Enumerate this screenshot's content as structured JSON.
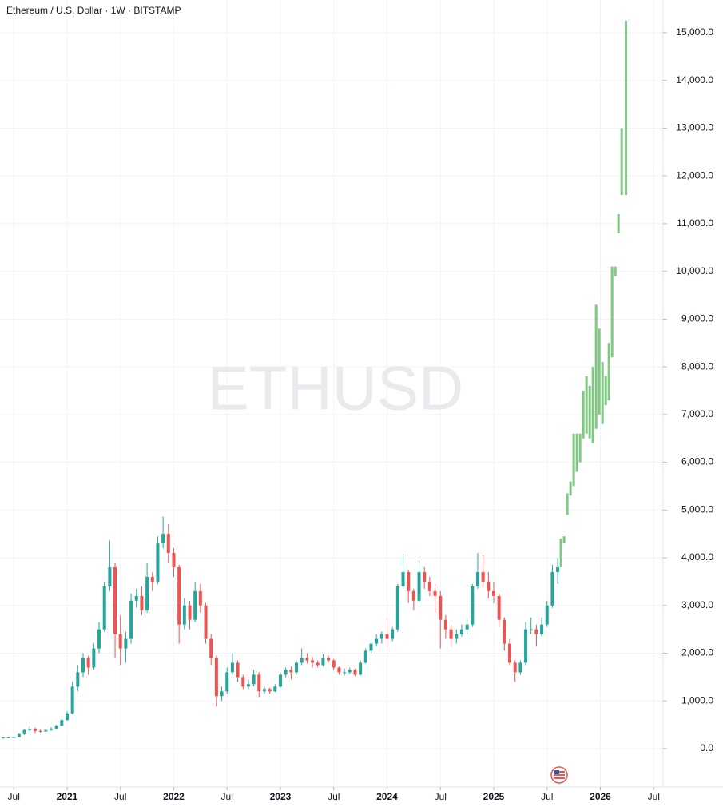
{
  "chart_data": {
    "type": "candlestick",
    "title": "Ethereum / U.S. Dollar · 1W · BITSTAMP",
    "watermark": "ETHUSD",
    "up_color": "#26a69a",
    "down_color": "#ef5350",
    "x": [
      2020.4,
      2020.45,
      2020.5,
      2020.55,
      2020.6,
      2020.65,
      2020.7,
      2020.75,
      2020.8,
      2020.85,
      2020.9,
      2020.95,
      2021.0,
      2021.05,
      2021.1,
      2021.15,
      2021.2,
      2021.25,
      2021.3,
      2021.35,
      2021.4,
      2021.45,
      2021.5,
      2021.55,
      2021.6,
      2021.65,
      2021.7,
      2021.75,
      2021.8,
      2021.85,
      2021.9,
      2021.95,
      2022.0,
      2022.05,
      2022.1,
      2022.15,
      2022.2,
      2022.25,
      2022.3,
      2022.35,
      2022.4,
      2022.45,
      2022.5,
      2022.55,
      2022.6,
      2022.65,
      2022.7,
      2022.75,
      2022.8,
      2022.85,
      2022.9,
      2022.95,
      2023.0,
      2023.05,
      2023.1,
      2023.15,
      2023.2,
      2023.25,
      2023.3,
      2023.35,
      2023.4,
      2023.45,
      2023.5,
      2023.55,
      2023.6,
      2023.65,
      2023.7,
      2023.75,
      2023.8,
      2023.85,
      2023.9,
      2023.95,
      2024.0,
      2024.05,
      2024.1,
      2024.15,
      2024.2,
      2024.25,
      2024.3,
      2024.35,
      2024.4,
      2024.45,
      2024.5,
      2024.55,
      2024.6,
      2024.65,
      2024.7,
      2024.75,
      2024.8,
      2024.85,
      2024.9,
      2024.95,
      2025.0,
      2025.05,
      2025.1,
      2025.15,
      2025.2,
      2025.25,
      2025.3,
      2025.35,
      2025.4,
      2025.45,
      2025.5,
      2025.55,
      2025.6
    ],
    "ohlc": [
      [
        225,
        245,
        215,
        230
      ],
      [
        230,
        250,
        220,
        235
      ],
      [
        235,
        255,
        225,
        240
      ],
      [
        240,
        320,
        235,
        300
      ],
      [
        300,
        410,
        290,
        390
      ],
      [
        390,
        480,
        370,
        420
      ],
      [
        420,
        440,
        310,
        370
      ],
      [
        370,
        400,
        330,
        360
      ],
      [
        360,
        410,
        350,
        390
      ],
      [
        390,
        450,
        370,
        420
      ],
      [
        420,
        500,
        410,
        480
      ],
      [
        480,
        640,
        470,
        600
      ],
      [
        600,
        780,
        580,
        740
      ],
      [
        740,
        1400,
        720,
        1300
      ],
      [
        1300,
        1750,
        1200,
        1600
      ],
      [
        1600,
        2000,
        1500,
        1900
      ],
      [
        1900,
        1950,
        1550,
        1700
      ],
      [
        1700,
        2200,
        1650,
        2100
      ],
      [
        2100,
        2650,
        2000,
        2500
      ],
      [
        2500,
        3500,
        2450,
        3400
      ],
      [
        3400,
        4360,
        3300,
        3800
      ],
      [
        3800,
        3900,
        1900,
        2400
      ],
      [
        2400,
        2800,
        1750,
        2100
      ],
      [
        2100,
        2450,
        1800,
        2300
      ],
      [
        2300,
        3250,
        2200,
        3100
      ],
      [
        3100,
        3350,
        2950,
        3200
      ],
      [
        3200,
        3400,
        2800,
        2900
      ],
      [
        2900,
        3900,
        2850,
        3600
      ],
      [
        3600,
        3700,
        3300,
        3500
      ],
      [
        3500,
        4450,
        3450,
        4300
      ],
      [
        4300,
        4860,
        4200,
        4500
      ],
      [
        4500,
        4700,
        3900,
        4100
      ],
      [
        4100,
        4200,
        3600,
        3800
      ],
      [
        3800,
        3850,
        2200,
        2600
      ],
      [
        2600,
        3150,
        2500,
        3000
      ],
      [
        3000,
        3100,
        2500,
        2700
      ],
      [
        2700,
        3500,
        2650,
        3300
      ],
      [
        3300,
        3450,
        2850,
        3000
      ],
      [
        3000,
        3050,
        2200,
        2300
      ],
      [
        2300,
        2400,
        1750,
        1900
      ],
      [
        1900,
        1950,
        880,
        1100
      ],
      [
        1100,
        1300,
        1000,
        1200
      ],
      [
        1200,
        1700,
        1150,
        1600
      ],
      [
        1600,
        2000,
        1550,
        1800
      ],
      [
        1800,
        1850,
        1400,
        1500
      ],
      [
        1500,
        1550,
        1250,
        1300
      ],
      [
        1300,
        1450,
        1250,
        1350
      ],
      [
        1350,
        1650,
        1300,
        1550
      ],
      [
        1550,
        1600,
        1080,
        1200
      ],
      [
        1200,
        1300,
        1150,
        1250
      ],
      [
        1250,
        1280,
        1150,
        1200
      ],
      [
        1200,
        1350,
        1180,
        1300
      ],
      [
        1300,
        1600,
        1280,
        1550
      ],
      [
        1550,
        1700,
        1500,
        1650
      ],
      [
        1650,
        1720,
        1450,
        1600
      ],
      [
        1600,
        1850,
        1550,
        1800
      ],
      [
        1800,
        2100,
        1750,
        1900
      ],
      [
        1900,
        2000,
        1780,
        1850
      ],
      [
        1850,
        1920,
        1700,
        1800
      ],
      [
        1800,
        1850,
        1700,
        1750
      ],
      [
        1750,
        1980,
        1720,
        1900
      ],
      [
        1900,
        1950,
        1800,
        1850
      ],
      [
        1850,
        1880,
        1650,
        1700
      ],
      [
        1700,
        1720,
        1550,
        1600
      ],
      [
        1600,
        1680,
        1530,
        1600
      ],
      [
        1600,
        1700,
        1560,
        1650
      ],
      [
        1650,
        1680,
        1520,
        1550
      ],
      [
        1550,
        1850,
        1530,
        1800
      ],
      [
        1800,
        2100,
        1780,
        2050
      ],
      [
        2050,
        2250,
        2000,
        2200
      ],
      [
        2200,
        2400,
        2150,
        2300
      ],
      [
        2300,
        2450,
        2200,
        2400
      ],
      [
        2400,
        2700,
        2150,
        2300
      ],
      [
        2300,
        2550,
        2250,
        2500
      ],
      [
        2500,
        3450,
        2450,
        3400
      ],
      [
        3400,
        4090,
        3350,
        3700
      ],
      [
        3700,
        3750,
        3050,
        3300
      ],
      [
        3300,
        3350,
        2900,
        3100
      ],
      [
        3100,
        3950,
        3050,
        3700
      ],
      [
        3700,
        3800,
        3350,
        3500
      ],
      [
        3500,
        3600,
        3200,
        3300
      ],
      [
        3300,
        3450,
        2850,
        3200
      ],
      [
        3200,
        3300,
        2100,
        2700
      ],
      [
        2700,
        2800,
        2300,
        2500
      ],
      [
        2500,
        2600,
        2150,
        2300
      ],
      [
        2300,
        2500,
        2200,
        2400
      ],
      [
        2400,
        2600,
        2350,
        2500
      ],
      [
        2500,
        2700,
        2400,
        2600
      ],
      [
        2600,
        3450,
        2550,
        3400
      ],
      [
        3400,
        4100,
        3350,
        3700
      ],
      [
        3700,
        4050,
        3400,
        3500
      ],
      [
        3500,
        3700,
        3150,
        3300
      ],
      [
        3300,
        3500,
        3050,
        3200
      ],
      [
        3200,
        3250,
        2550,
        2700
      ],
      [
        2700,
        2750,
        2050,
        2200
      ],
      [
        2200,
        2300,
        1750,
        1800
      ],
      [
        1800,
        1850,
        1400,
        1600
      ],
      [
        1600,
        1850,
        1550,
        1800
      ],
      [
        1800,
        2650,
        1750,
        2500
      ],
      [
        2500,
        2750,
        2400,
        2500
      ],
      [
        2500,
        2600,
        2150,
        2400
      ],
      [
        2400,
        2750,
        2350,
        2600
      ],
      [
        2600,
        3100,
        2550,
        3000
      ],
      [
        3000,
        3850,
        2950,
        3700
      ],
      [
        3700,
        4000,
        3450,
        3800
      ]
    ],
    "projection": {
      "color": "#81c784",
      "x": [
        2025.63,
        2025.66,
        2025.69,
        2025.72,
        2025.75,
        2025.78,
        2025.81,
        2025.84,
        2025.87,
        2025.9,
        2025.93,
        2025.96,
        2025.99,
        2026.02,
        2026.05,
        2026.08,
        2026.11,
        2026.14,
        2026.17,
        2026.2,
        2026.24
      ],
      "ranges": [
        [
          3800,
          4400
        ],
        [
          4300,
          4450
        ],
        [
          4900,
          5350
        ],
        [
          5300,
          5600
        ],
        [
          5500,
          6600
        ],
        [
          5800,
          6600
        ],
        [
          6000,
          6600
        ],
        [
          6500,
          7500
        ],
        [
          6600,
          7800
        ],
        [
          6500,
          7600
        ],
        [
          6400,
          8000
        ],
        [
          6700,
          9300
        ],
        [
          7000,
          8800
        ],
        [
          6800,
          8100
        ],
        [
          7200,
          7800
        ],
        [
          7300,
          8500
        ],
        [
          8200,
          10100
        ],
        [
          9900,
          10100
        ],
        [
          10800,
          11200
        ],
        [
          11600,
          13000
        ],
        [
          11600,
          15250
        ]
      ]
    },
    "xlim": [
      2020.371,
      2026.588
    ],
    "xticks": [
      {
        "value": 2020.5,
        "label": "Jul"
      },
      2021,
      {
        "value": 2021.5,
        "label": "Jul"
      },
      2022,
      {
        "value": 2022.5,
        "label": "Jul"
      },
      2023,
      {
        "value": 2023.5,
        "label": "Jul"
      },
      2024,
      {
        "value": 2024.5,
        "label": "Jul"
      },
      2025,
      {
        "value": 2025.5,
        "label": "Jul"
      },
      2026,
      {
        "value": 2026.5,
        "label": "Jul"
      }
    ],
    "ylim": [
      -804,
      15686
    ],
    "yticks": [
      {
        "value": 0,
        "label": "0.0"
      },
      {
        "value": 1000,
        "label": "1,000.0"
      },
      {
        "value": 2000,
        "label": "2,000.0"
      },
      {
        "value": 3000,
        "label": "3,000.0"
      },
      {
        "value": 4000,
        "label": "4,000.0"
      },
      {
        "value": 5000,
        "label": "5,000.0"
      },
      {
        "value": 6000,
        "label": "6,000.0"
      },
      {
        "value": 7000,
        "label": "7,000.0"
      },
      {
        "value": 8000,
        "label": "8,000.0"
      },
      {
        "value": 9000,
        "label": "9,000.0"
      },
      {
        "value": 10000,
        "label": "10,000.0"
      },
      {
        "value": 11000,
        "label": "11,000.0"
      },
      {
        "value": 12000,
        "label": "12,000.0"
      },
      {
        "value": 13000,
        "label": "13,000.0"
      },
      {
        "value": 14000,
        "label": "14,000.0"
      },
      {
        "value": 15000,
        "label": "15,000.0"
      }
    ],
    "grid": true
  }
}
